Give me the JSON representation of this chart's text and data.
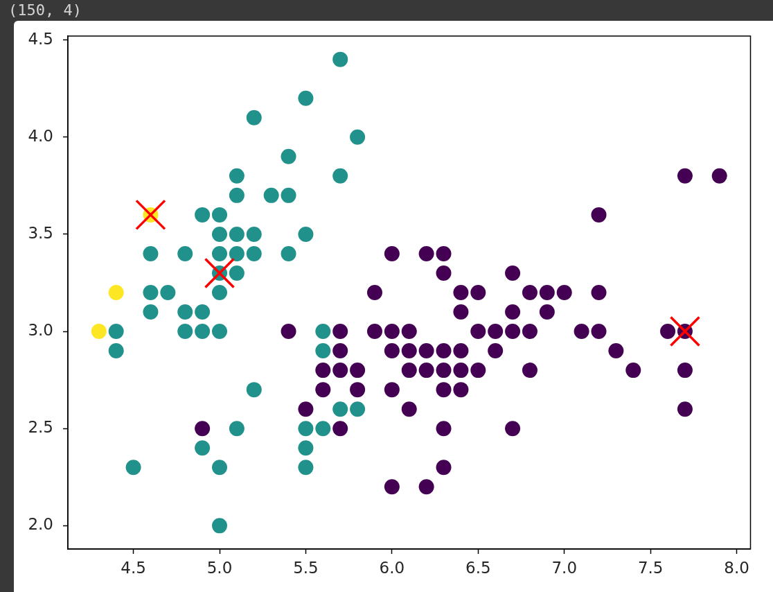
{
  "chart_data": {
    "type": "scatter",
    "annotations": [
      "(150, 4)"
    ],
    "xlim": [
      4.12,
      8.08
    ],
    "ylim": [
      1.88,
      4.52
    ],
    "xticks": [
      4.5,
      {
        "value": 5,
        "label": "5.0"
      },
      5.5,
      {
        "value": 6,
        "label": "6.0"
      },
      6.5,
      {
        "value": 7,
        "label": "7.0"
      },
      7.5,
      {
        "value": 8,
        "label": "8.0"
      }
    ],
    "yticks": [
      {
        "value": 2,
        "label": "2.0"
      },
      2.5,
      {
        "value": 3,
        "label": "3.0"
      },
      3.5,
      {
        "value": 4,
        "label": "4.0"
      },
      4.5
    ],
    "series": [
      {
        "color": "#440154",
        "marker": "circle",
        "x": [
          7.7,
          7.9,
          7.2,
          6.0,
          6.2,
          6.3,
          6.3,
          6.7,
          5.9,
          6.4,
          6.5,
          6.8,
          6.9,
          7.0,
          7.2,
          6.4,
          6.7,
          6.9,
          5.4,
          5.7,
          5.9,
          6.0,
          6.1,
          6.5,
          6.6,
          6.7,
          6.8,
          7.1,
          7.2,
          7.6,
          7.7,
          5.7,
          6.0,
          6.1,
          6.2,
          6.3,
          6.4,
          6.6,
          7.3,
          5.6,
          5.7,
          5.8,
          6.1,
          6.2,
          6.3,
          6.4,
          6.5,
          6.8,
          7.4,
          7.7,
          5.6,
          5.8,
          6.0,
          6.3,
          6.4,
          5.5,
          6.1,
          7.7,
          4.9,
          5.7,
          6.3,
          6.7,
          6.3,
          6.0,
          6.2
        ],
        "values": [
          3.8,
          3.8,
          3.6,
          3.4,
          3.4,
          3.4,
          3.3,
          3.3,
          3.2,
          3.2,
          3.2,
          3.2,
          3.2,
          3.2,
          3.2,
          3.1,
          3.1,
          3.1,
          3.0,
          3.0,
          3.0,
          3.0,
          3.0,
          3.0,
          3.0,
          3.0,
          3.0,
          3.0,
          3.0,
          3.0,
          3.0,
          2.9,
          2.9,
          2.9,
          2.9,
          2.9,
          2.9,
          2.9,
          2.9,
          2.8,
          2.8,
          2.8,
          2.8,
          2.8,
          2.8,
          2.8,
          2.8,
          2.8,
          2.8,
          2.8,
          2.7,
          2.7,
          2.7,
          2.7,
          2.7,
          2.6,
          2.6,
          2.6,
          2.5,
          2.5,
          2.5,
          2.5,
          2.3,
          2.2,
          2.2
        ]
      },
      {
        "color": "#21918c",
        "marker": "circle",
        "x": [
          5.7,
          5.5,
          5.2,
          5.8,
          5.4,
          5.1,
          5.7,
          5.1,
          5.3,
          5.4,
          4.9,
          5.0,
          5.0,
          5.1,
          5.2,
          5.5,
          4.6,
          4.8,
          5.0,
          5.1,
          5.2,
          5.4,
          5.0,
          5.1,
          4.6,
          4.7,
          5.0,
          4.6,
          4.8,
          4.9,
          4.4,
          4.8,
          4.9,
          5.0,
          5.6,
          4.4,
          5.6,
          5.2,
          5.7,
          5.8,
          5.1,
          5.5,
          5.6,
          4.9,
          5.5,
          4.5,
          5.0,
          5.5,
          5.0
        ],
        "values": [
          4.4,
          4.2,
          4.1,
          4.0,
          3.9,
          3.8,
          3.8,
          3.7,
          3.7,
          3.7,
          3.6,
          3.6,
          3.5,
          3.5,
          3.5,
          3.5,
          3.4,
          3.4,
          3.4,
          3.4,
          3.4,
          3.4,
          3.3,
          3.3,
          3.2,
          3.2,
          3.2,
          3.1,
          3.1,
          3.1,
          3.0,
          3.0,
          3.0,
          3.0,
          3.0,
          2.9,
          2.9,
          2.7,
          2.6,
          2.6,
          2.5,
          2.5,
          2.5,
          2.4,
          2.4,
          2.3,
          2.3,
          2.3,
          2.0
        ]
      },
      {
        "color": "#fde725",
        "marker": "circle",
        "x": [
          4.3,
          4.4,
          4.6
        ],
        "values": [
          3.0,
          3.2,
          3.6
        ]
      },
      {
        "color": "#ff0000",
        "marker": "cross",
        "x": [
          4.6,
          5.0,
          7.7
        ],
        "values": [
          3.6,
          3.3,
          3.0
        ]
      }
    ]
  }
}
